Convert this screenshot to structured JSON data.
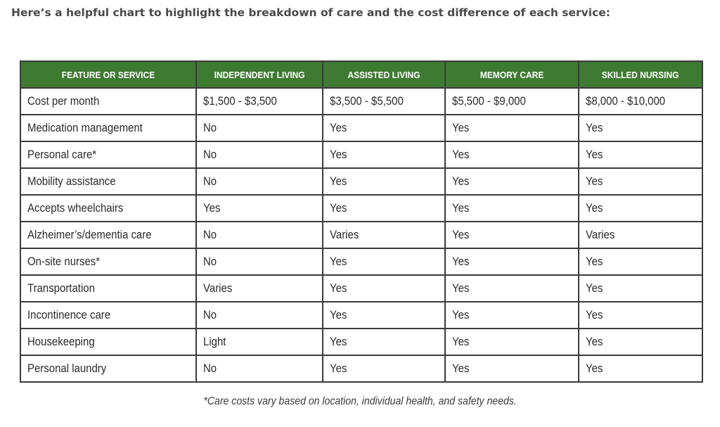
{
  "intro": "Here’s a helpful chart to highlight the breakdown of care and the cost difference of each service:",
  "table": {
    "headers": [
      "FEATURE OR SERVICE",
      "INDEPENDENT LIVING",
      "ASSISTED LIVING",
      "MEMORY CARE",
      "SKILLED NURSING"
    ],
    "rows": [
      [
        "Cost per month",
        "$1,500 - $3,500",
        "$3,500 - $5,500",
        "$5,500 - $9,000",
        "$8,000 - $10,000"
      ],
      [
        "Medication management",
        "No",
        "Yes",
        "Yes",
        "Yes"
      ],
      [
        "Personal care*",
        "No",
        "Yes",
        "Yes",
        "Yes"
      ],
      [
        "Mobility assistance",
        "No",
        "Yes",
        "Yes",
        "Yes"
      ],
      [
        "Accepts wheelchairs",
        "Yes",
        "Yes",
        "Yes",
        "Yes"
      ],
      [
        "Alzheimer’s/dementia care",
        "No",
        "Varies",
        "Yes",
        "Varies"
      ],
      [
        "On-site nurses*",
        "No",
        "Yes",
        "Yes",
        "Yes"
      ],
      [
        "Transportation",
        "Varies",
        "Yes",
        "Yes",
        "Yes"
      ],
      [
        "Incontinence care",
        "No",
        "Yes",
        "Yes",
        "Yes"
      ],
      [
        "Housekeeping",
        "Light",
        "Yes",
        "Yes",
        "Yes"
      ],
      [
        "Personal laundry",
        "No",
        "Yes",
        "Yes",
        "Yes"
      ]
    ]
  },
  "footnote": "*Care costs vary based on location, individual health, and safety needs.",
  "colors": {
    "header_bg": "#3f7a32",
    "border": "#3b3b3b"
  }
}
